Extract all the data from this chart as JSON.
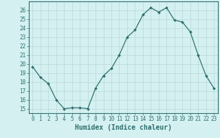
{
  "x": [
    0,
    1,
    2,
    3,
    4,
    5,
    6,
    7,
    8,
    9,
    10,
    11,
    12,
    13,
    14,
    15,
    16,
    17,
    18,
    19,
    20,
    21,
    22,
    23
  ],
  "y": [
    19.7,
    18.5,
    17.8,
    16.0,
    15.0,
    15.1,
    15.1,
    15.0,
    17.3,
    18.7,
    19.5,
    21.0,
    23.0,
    23.8,
    25.5,
    26.3,
    25.8,
    26.3,
    24.9,
    24.7,
    23.6,
    21.0,
    18.7,
    17.3
  ],
  "line_color": "#2d6e6e",
  "marker": "D",
  "marker_size": 2.0,
  "bg_color": "#d4f0f0",
  "grid_color": "#b8d8d8",
  "xlabel": "Humidex (Indice chaleur)",
  "xlim": [
    -0.5,
    23.5
  ],
  "ylim": [
    14.5,
    27.0
  ],
  "yticks": [
    15,
    16,
    17,
    18,
    19,
    20,
    21,
    22,
    23,
    24,
    25,
    26
  ],
  "xticks": [
    0,
    1,
    2,
    3,
    4,
    5,
    6,
    7,
    8,
    9,
    10,
    11,
    12,
    13,
    14,
    15,
    16,
    17,
    18,
    19,
    20,
    21,
    22,
    23
  ],
  "tick_label_fontsize": 5.5,
  "xlabel_fontsize": 7.0,
  "spine_color": "#2d6e6e",
  "linewidth": 0.9
}
